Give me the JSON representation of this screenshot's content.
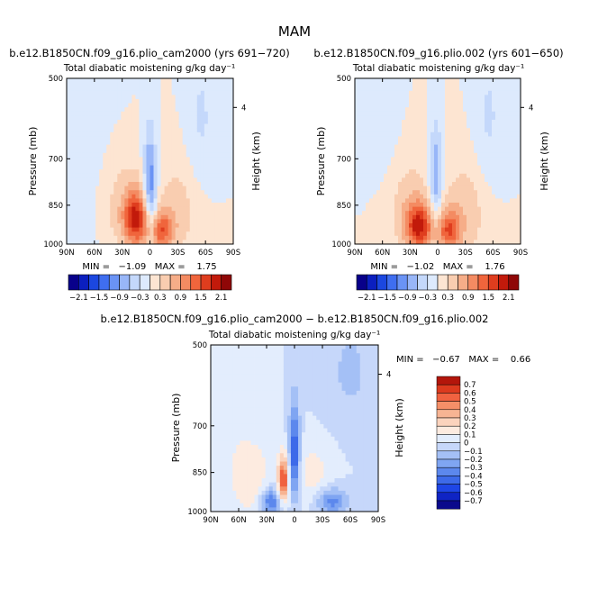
{
  "figure": {
    "title": "MAM"
  },
  "palettes": {
    "full": [
      "#08008a",
      "#0b1fbf",
      "#1b47e0",
      "#3f6ef0",
      "#6a93f5",
      "#98b6f8",
      "#c4d8fb",
      "#ddeafd",
      "#fde5d2",
      "#f9cdb0",
      "#f6ad88",
      "#f48b62",
      "#f0653c",
      "#df3d1e",
      "#c21a0b",
      "#8f0707"
    ],
    "diff": [
      "#0a0a8c",
      "#0f24c4",
      "#1e46e6",
      "#3d6ae9",
      "#5c88ed",
      "#7fa5f2",
      "#a4c0f6",
      "#c6d7fa",
      "#e3edfd",
      "#fdebe0",
      "#fbd3bd",
      "#f7b493",
      "#f58f68",
      "#f06240",
      "#dc3a1e",
      "#b3160b"
    ]
  },
  "panels": [
    {
      "id": "left",
      "header": "b.e12.B1850CN.f09_g16.plio_cam2000 (yrs 691−720)",
      "subtitle": "Total diabatic moistening",
      "units": "g/kg day⁻¹",
      "ylabel": "Pressure (mb)",
      "right_label": "Height (km)",
      "stats": "MIN =   −1.09   MAX =    1.75"
    },
    {
      "id": "right",
      "header": "b.e12.B1850CN.f09_g16.plio.002 (yrs 601−650)",
      "subtitle": "Total diabatic moistening",
      "units": "g/kg day⁻¹",
      "ylabel": "Pressure (mb)",
      "right_label": "Height (km)",
      "stats": "MIN =   −1.02   MAX =    1.76"
    },
    {
      "id": "diff",
      "header": "b.e12.B1850CN.f09_g16.plio_cam2000 − b.e12.B1850CN.f09_g16.plio.002",
      "subtitle": "Total diabatic moistening",
      "units": "g/kg day⁻¹",
      "ylabel": "Pressure (mb)",
      "right_label": "Height (km)",
      "stats": "MIN =   −0.67   MAX =    0.66"
    }
  ],
  "chart_data": [
    {
      "type": "heatmap",
      "title": "b.e12.B1850CN.f09_g16.plio_cam2000 (yrs 691−720)",
      "subtitle": "Total diabatic moistening",
      "units": "g/kg day⁻¹",
      "xlabel": "",
      "ylabel": "Pressure (mb)",
      "right_axis_label": "Height (km)",
      "x_ticks": [
        "90N",
        "60N",
        "30N",
        "0",
        "30S",
        "60S",
        "90S"
      ],
      "y_ticks": [
        500,
        700,
        850,
        1000
      ],
      "right_ticks": [
        "4"
      ],
      "xlim": [
        90,
        -90
      ],
      "ylim": [
        1000,
        500
      ],
      "min": -1.09,
      "max": 1.75,
      "colorbar_ticks": [
        "−2.1",
        "−1.5",
        "−0.9",
        "−0.3",
        "0.3",
        "0.9",
        "1.5",
        "2.1"
      ],
      "levels": [
        -2.1,
        -1.8,
        -1.5,
        -1.2,
        -0.9,
        -0.6,
        -0.3,
        0,
        0.3,
        0.6,
        0.9,
        1.2,
        1.5,
        1.8,
        2.1
      ],
      "field": [
        {
          "lat": 15,
          "p": 900,
          "amp": 1.7,
          "slat": 9,
          "sp": 70
        },
        {
          "lat": -12,
          "p": 945,
          "amp": 1.3,
          "slat": 9,
          "sp": 55
        },
        {
          "lat": 30,
          "p": 860,
          "amp": 0.5,
          "slat": 18,
          "sp": 130
        },
        {
          "lat": -30,
          "p": 870,
          "amp": 0.45,
          "slat": 18,
          "sp": 130
        },
        {
          "lat": 0,
          "p": 760,
          "amp": -1.1,
          "slat": 5,
          "sp": 110
        },
        {
          "lat": -3,
          "p": 880,
          "amp": -0.4,
          "slat": 5,
          "sp": 90
        },
        {
          "lat": -55,
          "p": 600,
          "amp": -0.35,
          "slat": 12,
          "sp": 140
        },
        {
          "lat": 65,
          "p": 750,
          "amp": -0.15,
          "slat": 25,
          "sp": 300
        }
      ]
    },
    {
      "type": "heatmap",
      "title": "b.e12.B1850CN.f09_g16.plio.002 (yrs 601−650)",
      "subtitle": "Total diabatic moistening",
      "units": "g/kg day⁻¹",
      "xlabel": "",
      "ylabel": "Pressure (mb)",
      "right_axis_label": "Height (km)",
      "x_ticks": [
        "90N",
        "60N",
        "30N",
        "0",
        "30S",
        "60S",
        "90S"
      ],
      "y_ticks": [
        500,
        700,
        850,
        1000
      ],
      "right_ticks": [
        "4"
      ],
      "xlim": [
        90,
        -90
      ],
      "ylim": [
        1000,
        500
      ],
      "min": -1.02,
      "max": 1.76,
      "colorbar_ticks": [
        "−2.1",
        "−1.5",
        "−0.9",
        "−0.3",
        "0.3",
        "0.9",
        "1.5",
        "2.1"
      ],
      "levels": [
        -2.1,
        -1.8,
        -1.5,
        -1.2,
        -0.9,
        -0.6,
        -0.3,
        0,
        0.3,
        0.6,
        0.9,
        1.2,
        1.5,
        1.8,
        2.1
      ],
      "field": [
        {
          "lat": 20,
          "p": 930,
          "amp": 1.7,
          "slat": 10,
          "sp": 60
        },
        {
          "lat": -12,
          "p": 945,
          "amp": 1.3,
          "slat": 9,
          "sp": 55
        },
        {
          "lat": 30,
          "p": 860,
          "amp": 0.5,
          "slat": 18,
          "sp": 130
        },
        {
          "lat": -30,
          "p": 870,
          "amp": 0.5,
          "slat": 18,
          "sp": 130
        },
        {
          "lat": 2,
          "p": 760,
          "amp": -1.0,
          "slat": 5,
          "sp": 110
        },
        {
          "lat": -55,
          "p": 600,
          "amp": -0.35,
          "slat": 12,
          "sp": 140
        },
        {
          "lat": 60,
          "p": 620,
          "amp": -0.2,
          "slat": 15,
          "sp": 120
        }
      ]
    },
    {
      "type": "heatmap",
      "title": "b.e12.B1850CN.f09_g16.plio_cam2000 − b.e12.B1850CN.f09_g16.plio.002",
      "subtitle": "Total diabatic moistening",
      "units": "g/kg day⁻¹",
      "xlabel": "",
      "ylabel": "Pressure (mb)",
      "right_axis_label": "Height (km)",
      "x_ticks": [
        "90N",
        "60N",
        "30N",
        "0",
        "30S",
        "60S",
        "90S"
      ],
      "y_ticks": [
        500,
        700,
        850,
        1000
      ],
      "right_ticks": [
        "4"
      ],
      "xlim": [
        90,
        -90
      ],
      "ylim": [
        1000,
        500
      ],
      "min": -0.67,
      "max": 0.66,
      "colorbar_ticks": [
        "0.7",
        "0.6",
        "0.5",
        "0.4",
        "0.3",
        "0.2",
        "0.1",
        "0",
        "−0.1",
        "−0.2",
        "−0.3",
        "−0.4",
        "−0.5",
        "−0.6",
        "−0.7"
      ],
      "levels": [
        -0.7,
        -0.6,
        -0.5,
        -0.4,
        -0.3,
        -0.2,
        -0.1,
        0,
        0.1,
        0.2,
        0.3,
        0.4,
        0.5,
        0.6,
        0.7
      ],
      "field": [
        {
          "lat": 12,
          "p": 880,
          "amp": 0.6,
          "slat": 4,
          "sp": 60
        },
        {
          "lat": 0,
          "p": 790,
          "amp": -0.55,
          "slat": 4,
          "sp": 110
        },
        {
          "lat": 25,
          "p": 960,
          "amp": -0.45,
          "slat": 8,
          "sp": 40
        },
        {
          "lat": -40,
          "p": 960,
          "amp": -0.35,
          "slat": 12,
          "sp": 40
        },
        {
          "lat": -20,
          "p": 860,
          "amp": 0.15,
          "slat": 15,
          "sp": 80
        },
        {
          "lat": 40,
          "p": 880,
          "amp": 0.12,
          "slat": 15,
          "sp": 100
        },
        {
          "lat": -60,
          "p": 560,
          "amp": -0.12,
          "slat": 20,
          "sp": 100
        },
        {
          "lat": 65,
          "p": 800,
          "amp": 0.08,
          "slat": 20,
          "sp": 250
        }
      ]
    }
  ]
}
